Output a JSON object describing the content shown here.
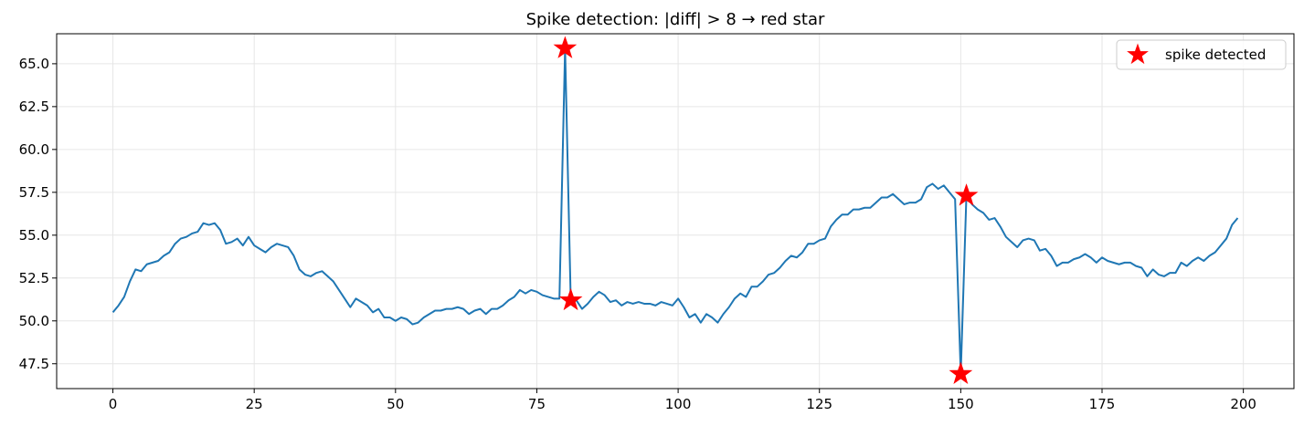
{
  "chart_data": {
    "type": "line",
    "title": "Spike detection: |diff| > 8 → red star",
    "xlabel": "",
    "ylabel": "",
    "xlim": [
      -9.95,
      208.95
    ],
    "ylim": [
      46.05,
      66.75
    ],
    "xticks": [
      0,
      25,
      50,
      75,
      100,
      125,
      150,
      175,
      200
    ],
    "xtick_labels": [
      "0",
      "25",
      "50",
      "75",
      "100",
      "125",
      "150",
      "175",
      "200"
    ],
    "yticks": [
      47.5,
      50.0,
      52.5,
      55.0,
      57.5,
      60.0,
      62.5,
      65.0
    ],
    "ytick_labels": [
      "47.5",
      "50.0",
      "52.5",
      "55.0",
      "57.5",
      "60.0",
      "62.5",
      "65.0"
    ],
    "grid": true,
    "legend_position": "top-right",
    "line_color": "#1f77b4",
    "marker_color": "#ff0000",
    "series": [
      {
        "values": [
          50.5,
          50.9,
          51.4,
          52.3,
          53.0,
          52.9,
          53.3,
          53.4,
          53.5,
          53.8,
          54.0,
          54.5,
          54.8,
          54.9,
          55.1,
          55.2,
          55.7,
          55.6,
          55.7,
          55.3,
          54.5,
          54.6,
          54.8,
          54.4,
          54.9,
          54.4,
          54.2,
          54.0,
          54.3,
          54.5,
          54.4,
          54.3,
          53.8,
          53.0,
          52.7,
          52.6,
          52.8,
          52.9,
          52.6,
          52.3,
          51.8,
          51.3,
          50.8,
          51.3,
          51.1,
          50.9,
          50.5,
          50.7,
          50.2,
          50.2,
          50.0,
          50.2,
          50.1,
          49.8,
          49.9,
          50.2,
          50.4,
          50.6,
          50.6,
          50.7,
          50.7,
          50.8,
          50.7,
          50.4,
          50.6,
          50.7,
          50.4,
          50.7,
          50.7,
          50.9,
          51.2,
          51.4,
          51.8,
          51.6,
          51.8,
          51.7,
          51.5,
          51.4,
          51.3,
          51.3,
          65.9,
          51.2,
          51.2,
          50.7,
          51.0,
          51.4,
          51.7,
          51.5,
          51.1,
          51.2,
          50.9,
          51.1,
          51.0,
          51.1,
          51.0,
          51.0,
          50.9,
          51.1,
          51.0,
          50.9,
          51.3,
          50.8,
          50.2,
          50.4,
          49.9,
          50.4,
          50.2,
          49.9,
          50.4,
          50.8,
          51.3,
          51.6,
          51.4,
          52.0,
          52.0,
          52.3,
          52.7,
          52.8,
          53.1,
          53.5,
          53.8,
          53.7,
          54.0,
          54.5,
          54.5,
          54.7,
          54.8,
          55.5,
          55.9,
          56.2,
          56.2,
          56.5,
          56.5,
          56.6,
          56.6,
          56.9,
          57.2,
          57.2,
          57.4,
          57.1,
          56.8,
          56.9,
          56.9,
          57.1,
          57.8,
          58.0,
          57.7,
          57.9,
          57.5,
          57.1,
          46.9,
          57.3,
          56.8,
          56.5,
          56.3,
          55.9,
          56.0,
          55.5,
          54.9,
          54.6,
          54.3,
          54.7,
          54.8,
          54.7,
          54.1,
          54.2,
          53.8,
          53.2,
          53.4,
          53.4,
          53.6,
          53.7,
          53.9,
          53.7,
          53.4,
          53.7,
          53.5,
          53.4,
          53.3,
          53.4,
          53.4,
          53.2,
          53.1,
          52.6,
          53.0,
          52.7,
          52.6,
          52.8,
          52.8,
          53.4,
          53.2,
          53.5,
          53.7,
          53.5,
          53.8,
          54.0,
          54.4,
          54.8,
          55.6,
          56.0
        ]
      }
    ],
    "spikes": {
      "name": "spike detected",
      "points": [
        {
          "x": 80,
          "y": 65.9
        },
        {
          "x": 81,
          "y": 51.2
        },
        {
          "x": 150,
          "y": 46.9
        },
        {
          "x": 151,
          "y": 57.3
        }
      ]
    }
  }
}
